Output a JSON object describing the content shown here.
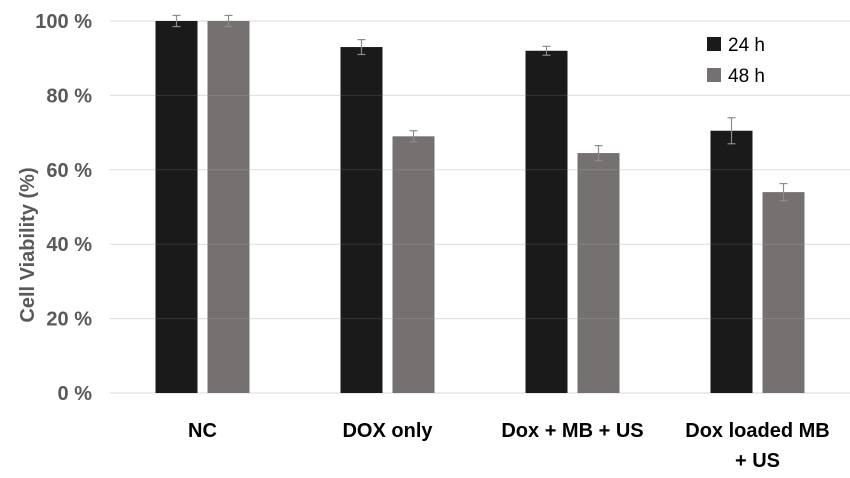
{
  "chart_data": {
    "type": "bar",
    "categories": [
      "NC",
      "DOX only",
      "Dox + MB + US",
      "Dox loaded MB + US"
    ],
    "category_lines": [
      [
        "NC"
      ],
      [
        "DOX only"
      ],
      [
        "Dox + MB + US"
      ],
      [
        "Dox loaded MB",
        "+ US"
      ]
    ],
    "series": [
      {
        "name": "24 h",
        "color": "#1a1a1a",
        "values": [
          100,
          93,
          92,
          70.5
        ],
        "errors": [
          1.5,
          2,
          1.2,
          3.5
        ]
      },
      {
        "name": "48 h",
        "color": "#767171",
        "values": [
          100,
          69,
          64.5,
          54
        ],
        "errors": [
          1.5,
          1.5,
          2,
          2.3
        ]
      }
    ],
    "xlabel": "",
    "ylabel": "Cell Viability (%)",
    "ylim": [
      0,
      100
    ],
    "yticks": [
      0,
      20,
      40,
      60,
      80,
      100
    ],
    "ytick_labels": [
      "0 %",
      "20 %",
      "40 %",
      "60 %",
      "80 %",
      "100 %"
    ],
    "grid": true,
    "legend_position": "top-right"
  }
}
